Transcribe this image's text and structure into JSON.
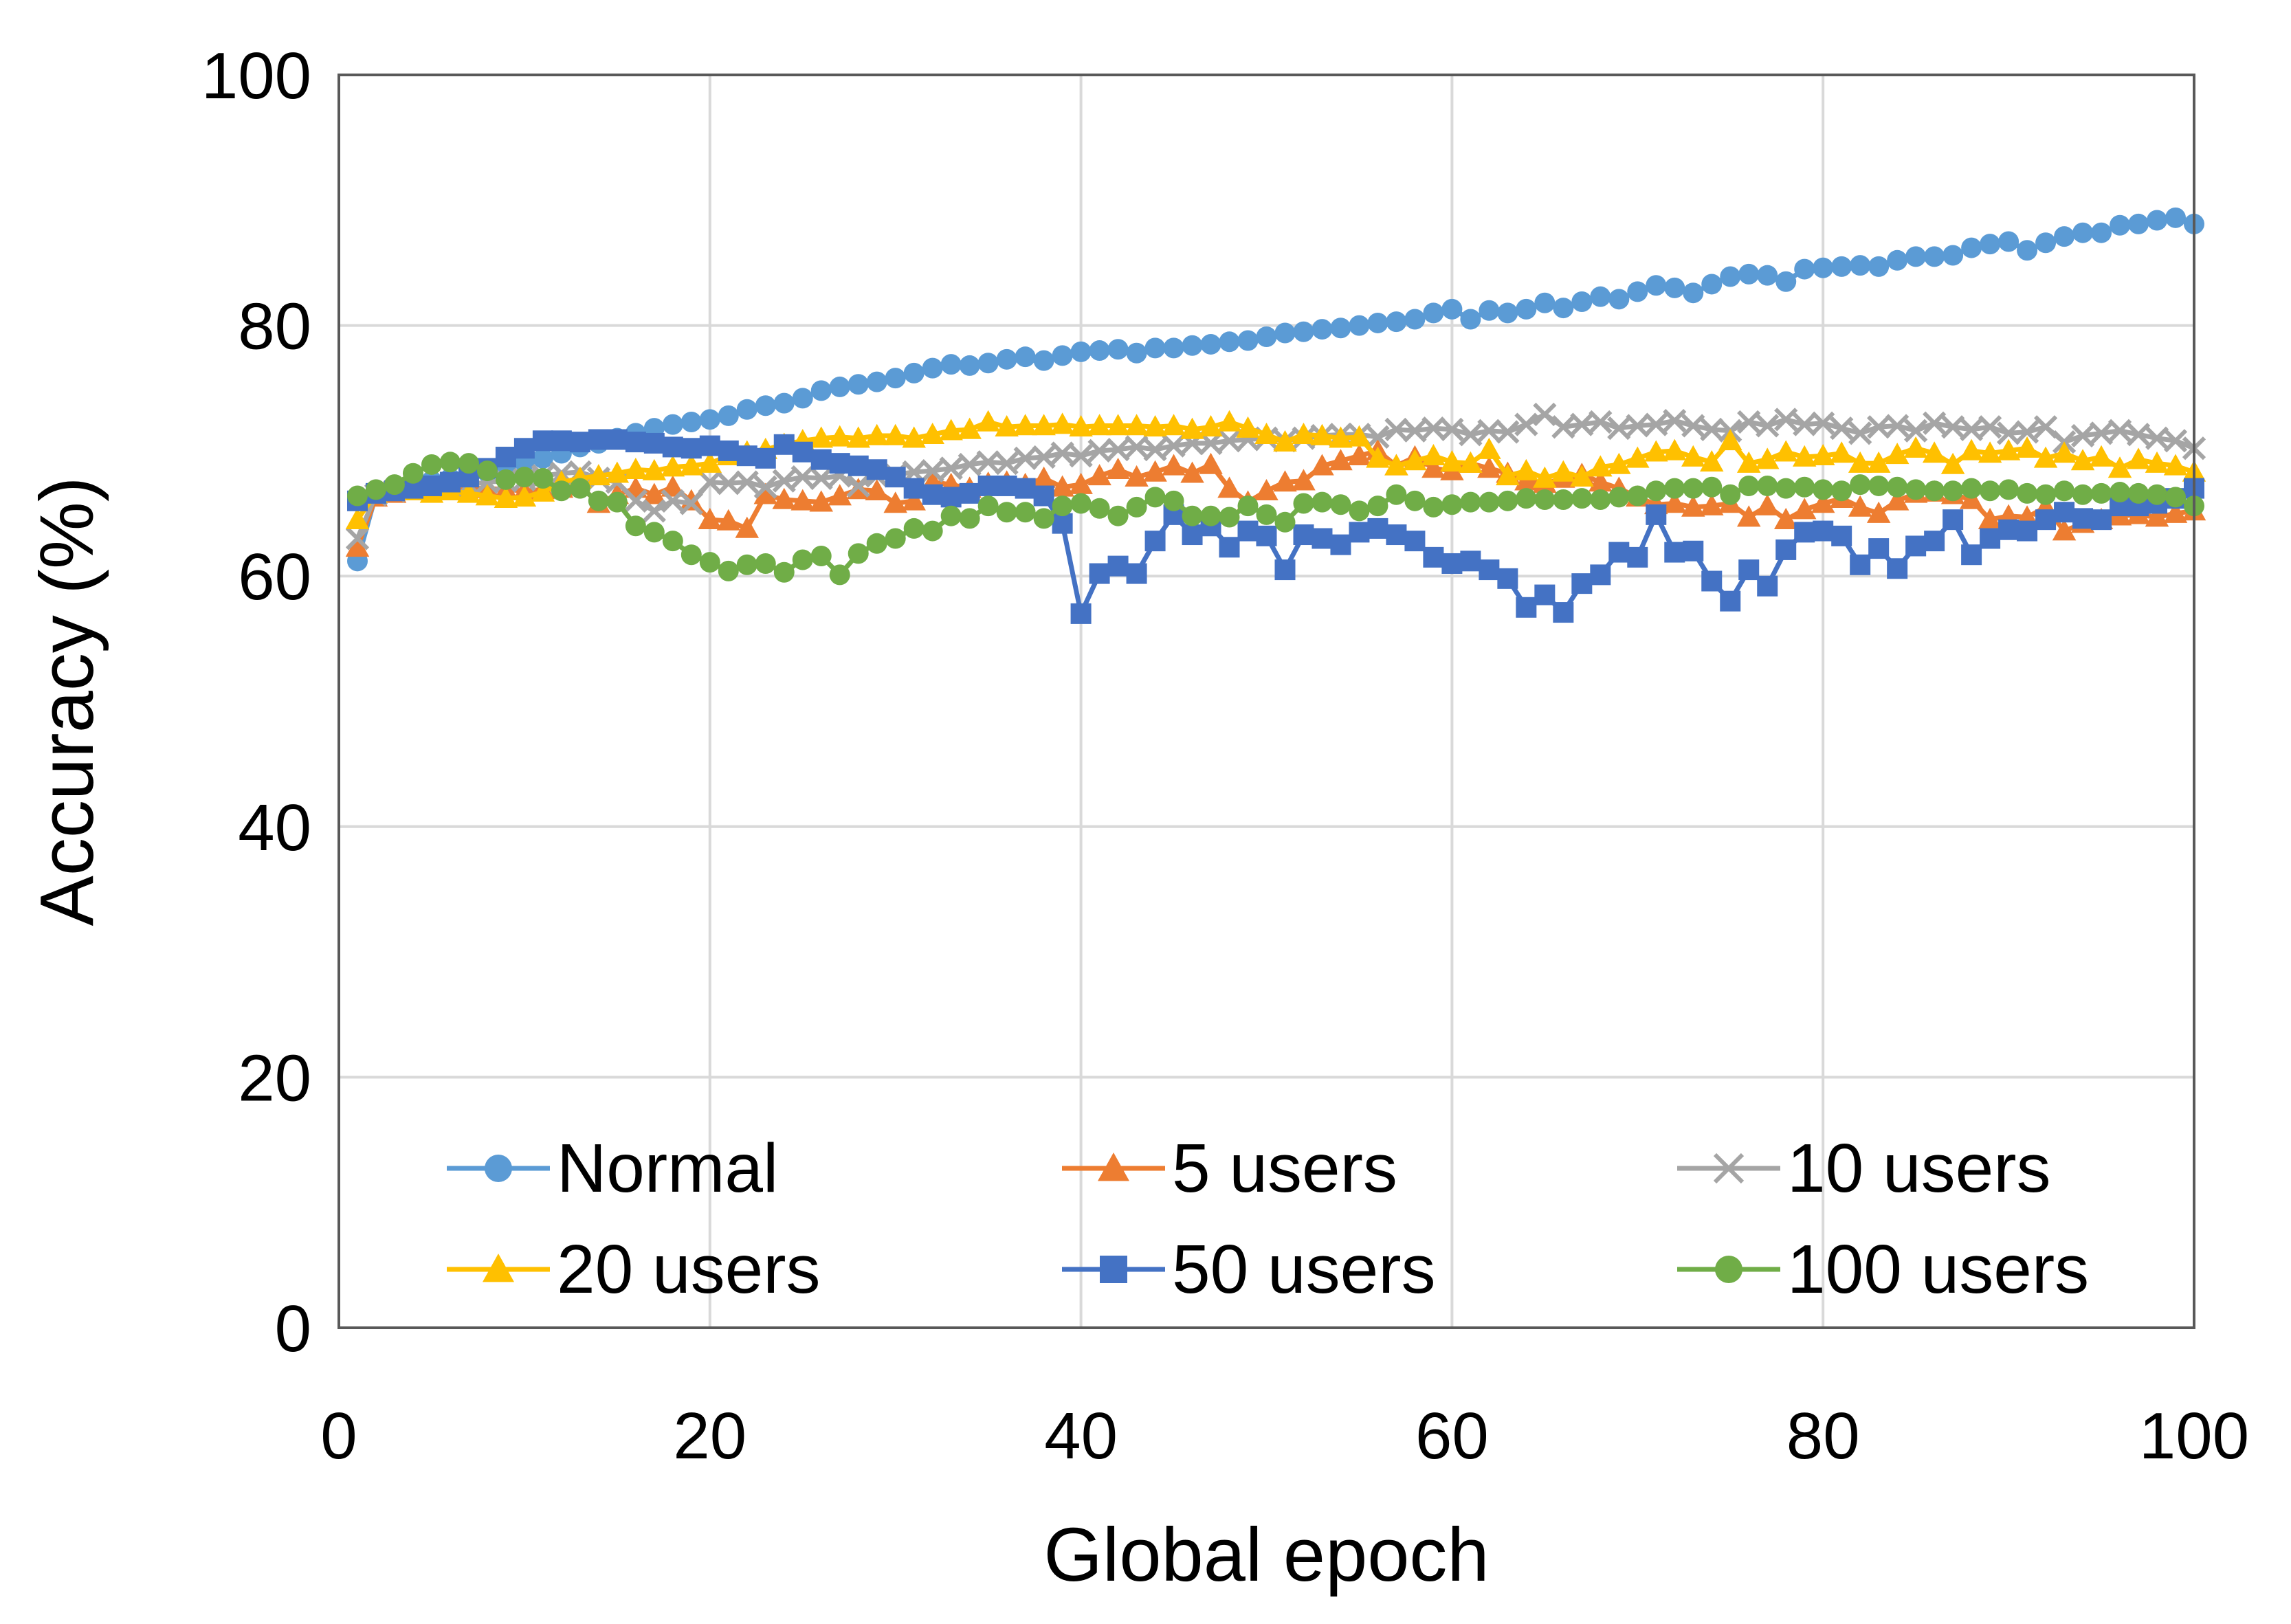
{
  "chart_data": {
    "type": "line",
    "xlabel": "Global epoch",
    "ylabel": "Accuracy (%)",
    "xlim": [
      0,
      100
    ],
    "ylim": [
      0,
      100
    ],
    "xticks": [
      0,
      20,
      40,
      60,
      80,
      100
    ],
    "yticks": [
      0,
      20,
      40,
      60,
      80,
      100
    ],
    "grid": true,
    "legend_position": "bottom-inside",
    "series": [
      {
        "name": "Normal",
        "color": "#5B9BD5",
        "marker": "circle",
        "x": [
          1,
          2,
          3,
          4,
          5,
          6,
          7,
          8,
          9,
          10,
          11,
          12,
          13,
          14,
          15,
          16,
          17,
          18,
          19,
          20,
          21,
          22,
          23,
          24,
          25,
          26,
          27,
          28,
          29,
          30,
          31,
          32,
          33,
          34,
          35,
          36,
          37,
          38,
          39,
          40,
          41,
          42,
          43,
          44,
          45,
          46,
          47,
          48,
          49,
          50,
          51,
          52,
          53,
          54,
          55,
          56,
          57,
          58,
          59,
          60,
          61,
          62,
          63,
          64,
          65,
          66,
          67,
          68,
          69,
          70,
          71,
          72,
          73,
          74,
          75,
          76,
          77,
          78,
          79,
          80,
          81,
          82,
          83,
          84,
          85,
          86,
          87,
          88,
          89,
          90,
          91,
          92,
          93,
          94,
          95,
          96,
          97,
          98,
          99,
          100
        ],
        "y": [
          61.2,
          66.5,
          67.0,
          67.3,
          67.6,
          67.8,
          68.0,
          68.3,
          68.7,
          69.1,
          69.4,
          69.8,
          70.3,
          70.6,
          71.0,
          71.4,
          71.8,
          72.1,
          72.3,
          72.5,
          72.8,
          73.3,
          73.6,
          73.8,
          74.2,
          74.8,
          75.1,
          75.3,
          75.5,
          75.8,
          76.2,
          76.6,
          76.9,
          76.8,
          77.0,
          77.3,
          77.5,
          77.2,
          77.6,
          77.9,
          78.0,
          78.1,
          77.8,
          78.2,
          78.2,
          78.4,
          78.5,
          78.7,
          78.8,
          79.1,
          79.4,
          79.5,
          79.7,
          79.8,
          80.0,
          80.2,
          80.3,
          80.5,
          81.0,
          81.3,
          80.5,
          81.2,
          81.0,
          81.3,
          81.8,
          81.4,
          81.9,
          82.3,
          82.1,
          82.7,
          83.2,
          83.0,
          82.6,
          83.3,
          83.9,
          84.1,
          84.0,
          83.5,
          84.5,
          84.6,
          84.7,
          84.8,
          84.7,
          85.2,
          85.5,
          85.5,
          85.6,
          86.2,
          86.5,
          86.7,
          86.0,
          86.6,
          87.1,
          87.4,
          87.4,
          88.0,
          88.1,
          88.4,
          88.6,
          88.1
        ]
      },
      {
        "name": "5 users",
        "color": "#ED7D31",
        "marker": "triangle",
        "x": [
          1,
          2,
          3,
          4,
          5,
          6,
          7,
          8,
          9,
          10,
          11,
          12,
          13,
          14,
          15,
          16,
          17,
          18,
          19,
          20,
          21,
          22,
          23,
          24,
          25,
          26,
          27,
          28,
          29,
          30,
          31,
          32,
          33,
          34,
          35,
          36,
          37,
          38,
          39,
          40,
          41,
          42,
          43,
          44,
          45,
          46,
          47,
          48,
          49,
          50,
          51,
          52,
          53,
          54,
          55,
          56,
          57,
          58,
          59,
          60,
          61,
          62,
          63,
          64,
          65,
          66,
          67,
          68,
          69,
          70,
          71,
          72,
          73,
          74,
          75,
          76,
          77,
          78,
          79,
          80,
          81,
          82,
          83,
          84,
          85,
          86,
          87,
          88,
          89,
          90,
          91,
          92,
          93,
          94,
          95,
          96,
          97,
          98,
          99,
          100
        ],
        "y": [
          62.3,
          66.3,
          66.6,
          66.8,
          66.9,
          66.9,
          67.0,
          67.0,
          66.9,
          66.8,
          66.9,
          67.0,
          67.2,
          65.8,
          66.5,
          67.0,
          66.5,
          67.1,
          66.0,
          64.5,
          64.4,
          63.8,
          66.5,
          66.1,
          66.0,
          65.9,
          66.4,
          66.9,
          66.8,
          65.8,
          66.0,
          67.5,
          67.3,
          67.0,
          67.4,
          67.5,
          67.3,
          67.8,
          67.1,
          67.3,
          68.0,
          68.5,
          67.9,
          68.3,
          68.8,
          68.2,
          68.9,
          67.0,
          65.9,
          66.8,
          67.5,
          67.6,
          68.8,
          69.2,
          69.6,
          70.0,
          68.8,
          69.5,
          68.6,
          68.4,
          69.0,
          68.6,
          68.2,
          67.6,
          67.4,
          67.8,
          68.1,
          67.5,
          67.0,
          66.3,
          65.7,
          65.8,
          65.5,
          65.6,
          65.8,
          64.7,
          65.6,
          64.5,
          65.3,
          65.8,
          66.2,
          65.5,
          65.0,
          66.0,
          66.6,
          66.7,
          66.5,
          66.1,
          64.5,
          64.8,
          64.7,
          65.5,
          63.6,
          64.2,
          64.5,
          64.8,
          64.9,
          64.7,
          65.0,
          65.2
        ]
      },
      {
        "name": "10 users",
        "color": "#A5A5A5",
        "marker": "x",
        "x": [
          1,
          2,
          3,
          4,
          5,
          6,
          7,
          8,
          9,
          10,
          11,
          12,
          13,
          14,
          15,
          16,
          17,
          18,
          19,
          20,
          21,
          22,
          23,
          24,
          25,
          26,
          27,
          28,
          29,
          30,
          31,
          32,
          33,
          34,
          35,
          36,
          37,
          38,
          39,
          40,
          41,
          42,
          43,
          44,
          45,
          46,
          47,
          48,
          49,
          50,
          51,
          52,
          53,
          54,
          55,
          56,
          57,
          58,
          59,
          60,
          61,
          62,
          63,
          64,
          65,
          66,
          67,
          68,
          69,
          70,
          71,
          72,
          73,
          74,
          75,
          76,
          77,
          78,
          79,
          80,
          81,
          82,
          83,
          84,
          85,
          86,
          87,
          88,
          89,
          90,
          91,
          92,
          93,
          94,
          95,
          96,
          97,
          98,
          99,
          100
        ],
        "y": [
          63.0,
          66.5,
          66.8,
          67.0,
          67.1,
          67.2,
          67.3,
          67.5,
          67.6,
          67.7,
          68.0,
          68.2,
          68.3,
          67.8,
          67.5,
          66.0,
          65.2,
          66.0,
          65.8,
          67.5,
          67.4,
          67.5,
          67.1,
          67.6,
          67.9,
          67.8,
          68.0,
          67.2,
          68.0,
          68.1,
          68.3,
          68.4,
          68.6,
          68.9,
          69.1,
          69.0,
          69.4,
          69.5,
          69.8,
          69.6,
          70.0,
          70.1,
          70.3,
          70.1,
          70.4,
          70.6,
          70.6,
          70.8,
          70.9,
          71.0,
          70.8,
          71.0,
          71.2,
          71.3,
          71.3,
          71.1,
          71.7,
          71.6,
          71.8,
          71.7,
          71.3,
          71.6,
          71.5,
          72.1,
          72.9,
          71.9,
          72.1,
          72.3,
          71.8,
          72.0,
          72.1,
          72.4,
          72.0,
          71.7,
          71.6,
          72.3,
          72.0,
          72.5,
          72.1,
          72.2,
          71.8,
          71.4,
          71.9,
          72.0,
          71.6,
          72.2,
          71.9,
          71.7,
          71.9,
          71.4,
          71.5,
          71.9,
          70.7,
          71.2,
          71.4,
          71.6,
          71.3,
          71.0,
          70.8,
          70.2
        ]
      },
      {
        "name": "20 users",
        "color": "#FFC000",
        "marker": "triangle",
        "x": [
          1,
          2,
          3,
          4,
          5,
          6,
          7,
          8,
          9,
          10,
          11,
          12,
          13,
          14,
          15,
          16,
          17,
          18,
          19,
          20,
          21,
          22,
          23,
          24,
          25,
          26,
          27,
          28,
          29,
          30,
          31,
          32,
          33,
          34,
          35,
          36,
          37,
          38,
          39,
          40,
          41,
          42,
          43,
          44,
          45,
          46,
          47,
          48,
          49,
          50,
          51,
          52,
          53,
          54,
          55,
          56,
          57,
          58,
          59,
          60,
          61,
          62,
          63,
          64,
          65,
          66,
          67,
          68,
          69,
          70,
          71,
          72,
          73,
          74,
          75,
          76,
          77,
          78,
          79,
          80,
          81,
          82,
          83,
          84,
          85,
          86,
          87,
          88,
          89,
          90,
          91,
          92,
          93,
          94,
          95,
          96,
          97,
          98,
          99,
          100
        ],
        "y": [
          64.5,
          66.6,
          66.8,
          66.8,
          66.6,
          66.8,
          66.6,
          66.4,
          66.2,
          66.3,
          66.7,
          67.5,
          67.8,
          68.0,
          68.2,
          68.5,
          68.4,
          68.7,
          68.8,
          69.0,
          69.6,
          69.9,
          70.1,
          70.5,
          70.8,
          71.0,
          71.1,
          71.0,
          71.2,
          71.2,
          71.0,
          71.3,
          71.6,
          71.7,
          72.3,
          71.9,
          72.0,
          72.0,
          72.1,
          71.9,
          72.0,
          72.0,
          72.0,
          71.9,
          72.0,
          71.7,
          71.9,
          72.3,
          71.8,
          71.3,
          70.7,
          71.3,
          71.2,
          71.0,
          71.1,
          69.4,
          68.8,
          69.2,
          69.6,
          69.1,
          69.0,
          70.1,
          68.0,
          68.4,
          67.8,
          68.3,
          67.9,
          68.7,
          68.9,
          69.4,
          69.9,
          70.0,
          69.5,
          69.1,
          70.8,
          69.0,
          69.3,
          69.9,
          69.5,
          69.6,
          69.8,
          69.0,
          69.0,
          69.7,
          70.2,
          69.8,
          68.9,
          70.0,
          69.8,
          70.0,
          70.2,
          69.4,
          69.8,
          69.2,
          69.5,
          68.6,
          69.3,
          69.0,
          68.8,
          68.3
        ]
      },
      {
        "name": "50 users",
        "color": "#4472C4",
        "marker": "square",
        "x": [
          1,
          2,
          3,
          4,
          5,
          6,
          7,
          8,
          9,
          10,
          11,
          12,
          13,
          14,
          15,
          16,
          17,
          18,
          19,
          20,
          21,
          22,
          23,
          24,
          25,
          26,
          27,
          28,
          29,
          30,
          31,
          32,
          33,
          34,
          35,
          36,
          37,
          38,
          39,
          40,
          41,
          42,
          43,
          44,
          45,
          46,
          47,
          48,
          49,
          50,
          51,
          52,
          53,
          54,
          55,
          56,
          57,
          58,
          59,
          60,
          61,
          62,
          63,
          64,
          65,
          66,
          67,
          68,
          69,
          70,
          71,
          72,
          73,
          74,
          75,
          76,
          77,
          78,
          79,
          80,
          81,
          82,
          83,
          84,
          85,
          86,
          87,
          88,
          89,
          90,
          91,
          92,
          93,
          94,
          95,
          96,
          97,
          98,
          99,
          100
        ],
        "y": [
          66.0,
          66.6,
          66.8,
          67.0,
          67.2,
          67.5,
          67.9,
          68.6,
          69.5,
          70.2,
          70.8,
          70.8,
          70.7,
          70.9,
          70.9,
          70.7,
          70.6,
          70.3,
          70.2,
          70.4,
          70.0,
          69.6,
          69.4,
          70.5,
          69.9,
          69.3,
          69.0,
          68.8,
          68.5,
          67.9,
          67.0,
          66.5,
          66.3,
          66.6,
          67.2,
          67.2,
          67.0,
          66.4,
          64.2,
          57.0,
          60.2,
          60.8,
          60.2,
          62.8,
          64.9,
          63.3,
          64.0,
          62.3,
          63.6,
          63.2,
          60.5,
          63.3,
          63.0,
          62.5,
          63.5,
          63.8,
          63.3,
          62.8,
          61.5,
          61.0,
          61.2,
          60.5,
          59.8,
          57.5,
          58.5,
          57.1,
          59.4,
          60.1,
          61.9,
          61.5,
          64.9,
          61.9,
          62.0,
          59.6,
          58.0,
          60.5,
          59.2,
          62.1,
          63.5,
          63.6,
          63.2,
          60.9,
          62.2,
          60.6,
          62.4,
          62.8,
          64.5,
          61.7,
          63.0,
          63.7,
          63.6,
          64.5,
          65.1,
          64.6,
          64.5,
          65.6,
          65.6,
          65.8,
          66.2,
          67.0
        ]
      },
      {
        "name": "100 users",
        "color": "#70AD47",
        "marker": "circle",
        "x": [
          1,
          2,
          3,
          4,
          5,
          6,
          7,
          8,
          9,
          10,
          11,
          12,
          13,
          14,
          15,
          16,
          17,
          18,
          19,
          20,
          21,
          22,
          23,
          24,
          25,
          26,
          27,
          28,
          29,
          30,
          31,
          32,
          33,
          34,
          35,
          36,
          37,
          38,
          39,
          40,
          41,
          42,
          43,
          44,
          45,
          46,
          47,
          48,
          49,
          50,
          51,
          52,
          53,
          54,
          55,
          56,
          57,
          58,
          59,
          60,
          61,
          62,
          63,
          64,
          65,
          66,
          67,
          68,
          69,
          70,
          71,
          72,
          73,
          74,
          75,
          76,
          77,
          78,
          79,
          80,
          81,
          82,
          83,
          84,
          85,
          86,
          87,
          88,
          89,
          90,
          91,
          92,
          93,
          94,
          95,
          96,
          97,
          98,
          99,
          100
        ],
        "y": [
          66.4,
          66.9,
          67.3,
          68.2,
          68.9,
          69.1,
          69.0,
          68.4,
          67.7,
          67.9,
          67.8,
          66.8,
          67.0,
          66.0,
          65.9,
          64.0,
          63.5,
          62.8,
          61.7,
          61.1,
          60.4,
          60.9,
          61.0,
          60.3,
          61.3,
          61.6,
          60.1,
          61.8,
          62.6,
          63.0,
          63.8,
          63.6,
          64.8,
          64.6,
          65.6,
          65.1,
          65.1,
          64.6,
          65.6,
          65.8,
          65.4,
          64.8,
          65.5,
          66.3,
          66.0,
          64.8,
          64.8,
          64.7,
          65.6,
          64.9,
          64.3,
          65.8,
          65.9,
          65.7,
          65.2,
          65.6,
          66.5,
          66.0,
          65.5,
          65.7,
          65.9,
          65.9,
          66.0,
          66.2,
          66.1,
          66.1,
          66.2,
          66.1,
          66.3,
          66.4,
          66.8,
          67.0,
          67.0,
          67.1,
          66.5,
          67.2,
          67.2,
          67.0,
          67.1,
          66.9,
          66.8,
          67.3,
          67.2,
          67.1,
          66.9,
          66.8,
          66.8,
          67.0,
          66.8,
          66.9,
          66.6,
          66.5,
          66.8,
          66.5,
          66.6,
          66.7,
          66.6,
          66.5,
          66.3,
          65.6
        ]
      }
    ]
  }
}
